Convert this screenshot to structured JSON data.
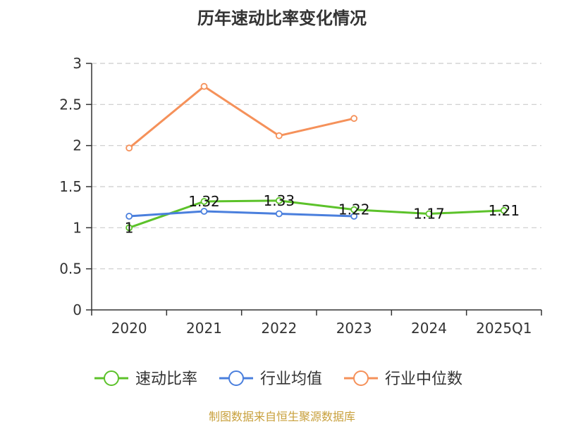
{
  "chart_data": {
    "type": "line",
    "title": "历年速动比率变化情况",
    "categories": [
      "2020",
      "2021",
      "2022",
      "2023",
      "2024",
      "2025Q1"
    ],
    "y_ticks": [
      "0",
      "0.5",
      "1",
      "1.5",
      "2",
      "2.5",
      "3"
    ],
    "ylim": [
      0,
      3
    ],
    "grid": true,
    "legend_position": "bottom",
    "series": [
      {
        "name": "速动比率",
        "color": "#5cc22a",
        "values": [
          1,
          1.32,
          1.33,
          1.22,
          1.17,
          1.21
        ],
        "labels": [
          "1",
          "1.32",
          "1.33",
          "1.22",
          "1.17",
          "1.21"
        ]
      },
      {
        "name": "行业均值",
        "color": "#4a7fdd",
        "values": [
          1.14,
          1.2,
          1.17,
          1.14,
          null,
          null
        ]
      },
      {
        "name": "行业中位数",
        "color": "#f5915a",
        "values": [
          1.97,
          2.72,
          2.12,
          2.33,
          null,
          null
        ]
      }
    ]
  },
  "source_text": "制图数据来自恒生聚源数据库"
}
